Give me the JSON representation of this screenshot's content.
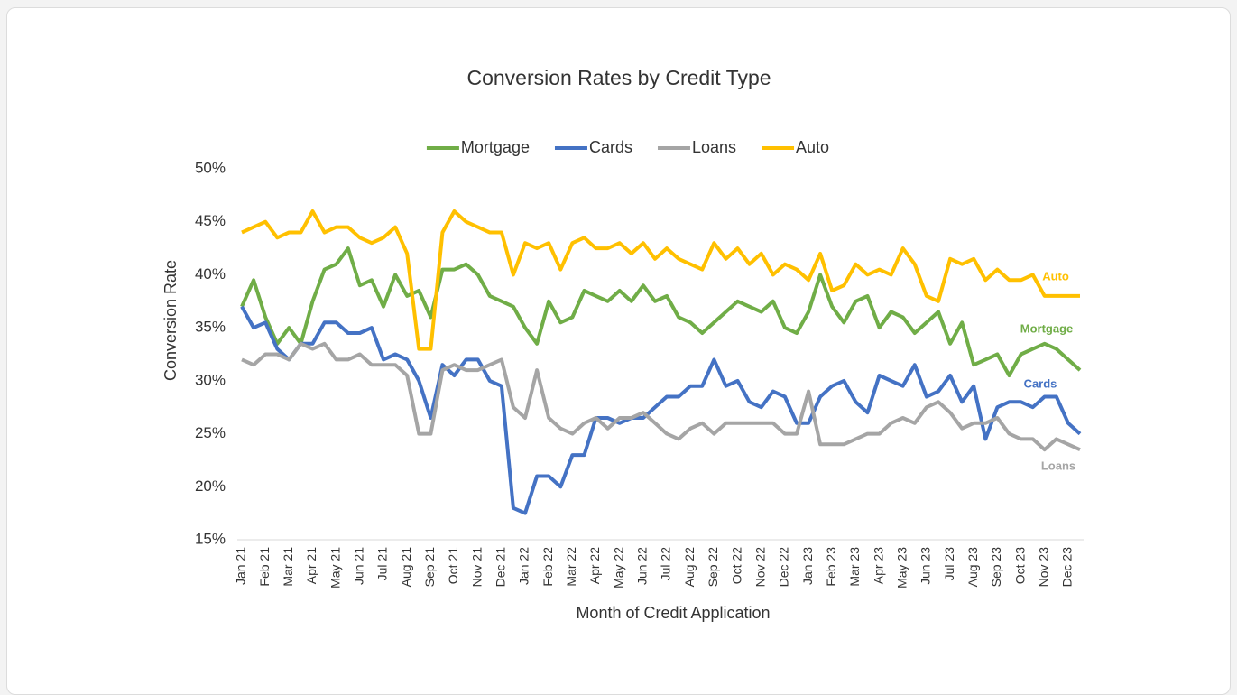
{
  "chart_data": {
    "type": "line",
    "title": "Conversion Rates by Credit Type",
    "x_label": "Month of Credit Application",
    "y_label": "Conversion Rate",
    "categories": [
      "Jan 21",
      null,
      "Feb 21",
      null,
      "Mar 21",
      null,
      "Apr 21",
      null,
      "May 21",
      null,
      "Jun 21",
      null,
      "Jul 21",
      null,
      "Aug 21",
      null,
      "Sep 21",
      null,
      "Oct 21",
      null,
      "Nov 21",
      null,
      "Dec 21",
      null,
      "Jan 22",
      null,
      "Feb 22",
      null,
      "Mar 22",
      null,
      "Apr 22",
      null,
      "May 22",
      null,
      "Jun 22",
      null,
      "Jul 22",
      null,
      "Aug 22",
      null,
      "Sep 22",
      null,
      "Oct 22",
      null,
      "Nov 22",
      null,
      "Dec 22",
      null,
      "Jan 23",
      null,
      "Feb 23",
      null,
      "Mar 23",
      null,
      "Apr 23",
      null,
      "May 23",
      null,
      "Jun 23",
      null,
      "Jul 23",
      null,
      "Aug 23",
      null,
      "Sep 23",
      null,
      "Oct 23",
      null,
      "Nov 23",
      null,
      "Dec 23",
      null
    ],
    "series": [
      {
        "name": "Mortgage",
        "color": "#70ad47",
        "values": [
          37,
          39.5,
          36,
          33.5,
          35,
          33.5,
          37.5,
          40.5,
          41,
          42.5,
          39,
          39.5,
          37,
          40,
          38,
          38.5,
          36,
          40.5,
          40.5,
          41,
          40,
          38,
          37.5,
          37,
          35,
          33.5,
          37.5,
          35.5,
          36,
          38.5,
          38,
          37.5,
          38.5,
          37.5,
          39,
          37.5,
          38,
          36,
          35.5,
          34.5,
          35.5,
          36.5,
          37.5,
          37,
          36.5,
          37.5,
          35,
          34.5,
          36.5,
          40,
          37,
          35.5,
          37.5,
          38,
          35,
          36.5,
          36,
          34.5,
          35.5,
          36.5,
          33.5,
          35.5,
          31.5,
          32,
          32.5,
          30.5,
          32.5,
          33,
          33.5,
          33,
          32,
          31
        ]
      },
      {
        "name": "Cards",
        "color": "#4472c4",
        "values": [
          37,
          35,
          35.5,
          33,
          32,
          33.5,
          33.5,
          35.5,
          35.5,
          34.5,
          34.5,
          35,
          32,
          32.5,
          32,
          30,
          26.5,
          31.5,
          30.5,
          32,
          32,
          30,
          29.5,
          18,
          17.5,
          21,
          21,
          20,
          23,
          23,
          26.5,
          26.5,
          26,
          26.5,
          26.5,
          27.5,
          28.5,
          28.5,
          29.5,
          29.5,
          32,
          29.5,
          30,
          28,
          27.5,
          29,
          28.5,
          26,
          26,
          28.5,
          29.5,
          30,
          28,
          27,
          30.5,
          30,
          29.5,
          31.5,
          28.5,
          29,
          30.5,
          28,
          29.5,
          24.5,
          27.5,
          28,
          28,
          27.5,
          28.5,
          28.5,
          26,
          25
        ]
      },
      {
        "name": "Loans",
        "color": "#a5a5a5",
        "values": [
          32,
          31.5,
          32.5,
          32.5,
          32,
          33.5,
          33,
          33.5,
          32,
          32,
          32.5,
          31.5,
          31.5,
          31.5,
          30.5,
          25,
          25,
          31,
          31.5,
          31,
          31,
          31.5,
          32,
          27.5,
          26.5,
          31,
          26.5,
          25.5,
          25,
          26,
          26.5,
          25.5,
          26.5,
          26.5,
          27,
          26,
          25,
          24.5,
          25.5,
          26,
          25,
          26,
          26,
          26,
          26,
          26,
          25,
          25,
          29,
          24,
          24,
          24,
          24.5,
          25,
          25,
          26,
          26.5,
          26,
          27.5,
          28,
          27,
          25.5,
          26,
          26,
          26.5,
          25,
          24.5,
          24.5,
          23.5,
          24.5,
          24,
          23.5
        ]
      },
      {
        "name": "Auto",
        "color": "#ffc000",
        "values": [
          44,
          44.5,
          45,
          43.5,
          44,
          44,
          46,
          44,
          44.5,
          44.5,
          43.5,
          43,
          43.5,
          44.5,
          42,
          33,
          33,
          44,
          46,
          45,
          44.5,
          44,
          44,
          40,
          43,
          42.5,
          43,
          40.5,
          43,
          43.5,
          42.5,
          42.5,
          43,
          42,
          43,
          41.5,
          42.5,
          41.5,
          41,
          40.5,
          43,
          41.5,
          42.5,
          41,
          42,
          40,
          41,
          40.5,
          39.5,
          42,
          38.5,
          39,
          41,
          40,
          40.5,
          40,
          42.5,
          41,
          38,
          37.5,
          41.5,
          41,
          41.5,
          39.5,
          40.5,
          39.5,
          39.5,
          40,
          38,
          38,
          38,
          38
        ]
      }
    ],
    "ylim": [
      15,
      50
    ],
    "yticks": [
      {
        "value": 15,
        "label": "15%"
      },
      {
        "value": 20,
        "label": "20%"
      },
      {
        "value": 25,
        "label": "25%"
      },
      {
        "value": 30,
        "label": "30%"
      },
      {
        "value": 35,
        "label": "35%"
      },
      {
        "value": 40,
        "label": "40%"
      },
      {
        "value": 45,
        "label": "45%"
      },
      {
        "value": 50,
        "label": "50%"
      }
    ],
    "grid": false,
    "legend": "top"
  }
}
